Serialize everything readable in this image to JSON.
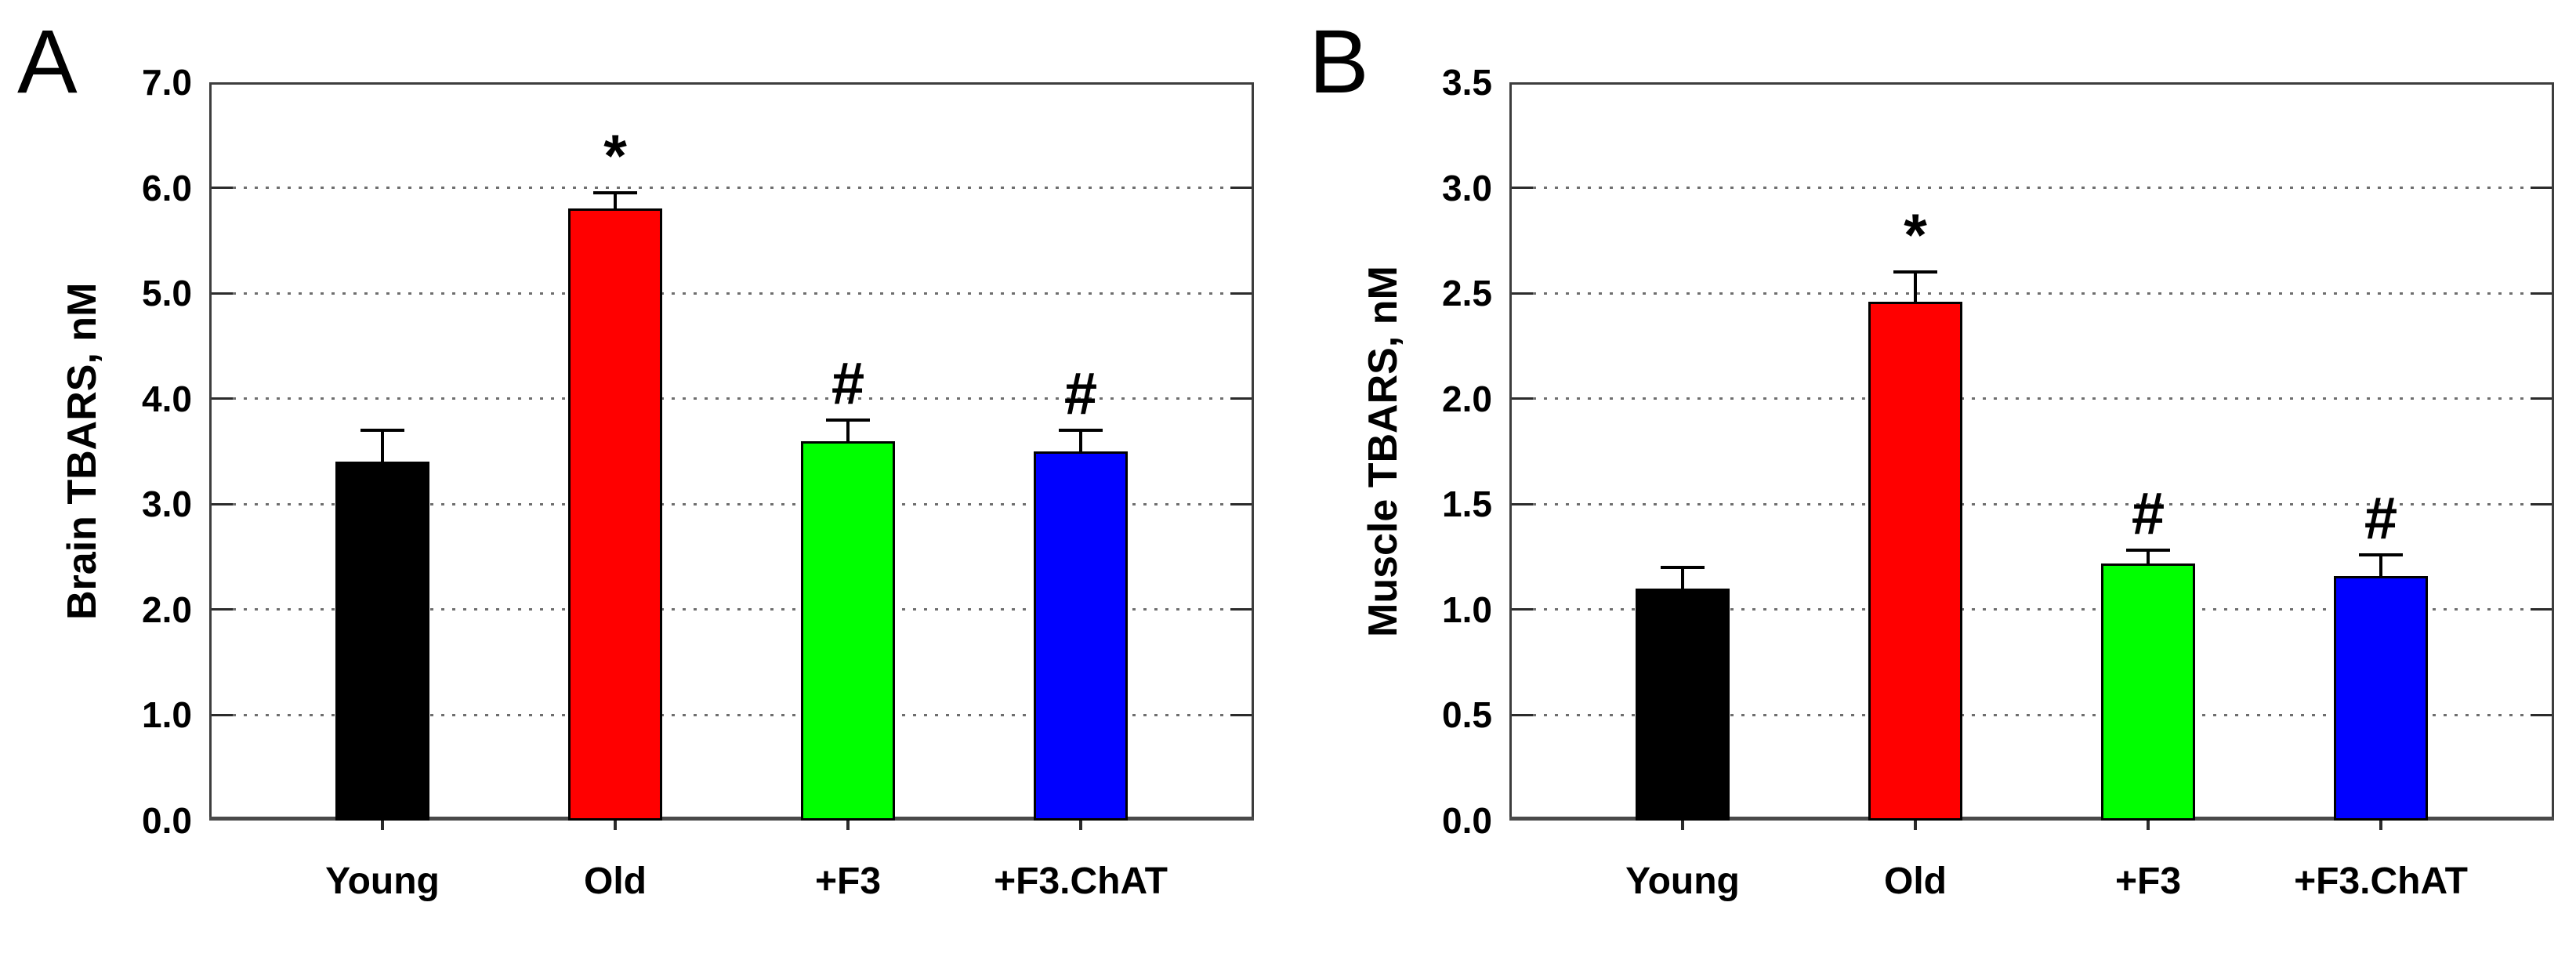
{
  "panels": [
    {
      "letter": "A"
    },
    {
      "letter": "B"
    }
  ],
  "chart_data": [
    {
      "type": "bar",
      "panel": "A",
      "title": "",
      "ylabel": "Brain TBARS, nM",
      "xlabel": "",
      "ylim": [
        0,
        7.0
      ],
      "ytick_step": 1.0,
      "ytick_labels": [
        "0.0",
        "1.0",
        "2.0",
        "3.0",
        "4.0",
        "5.0",
        "6.0",
        "7.0"
      ],
      "grid": "dotted horizontal",
      "legend": "none",
      "categories": [
        "Young",
        "Old",
        "+F3",
        "+F3.ChAT"
      ],
      "values": [
        3.4,
        5.8,
        3.6,
        3.5
      ],
      "errors": [
        0.3,
        0.15,
        0.2,
        0.2
      ],
      "error_direction": "upper",
      "significance": [
        "",
        "*",
        "#",
        "#"
      ],
      "bar_colors": [
        "#000000",
        "#ff0000",
        "#00ff00",
        "#0000ff"
      ]
    },
    {
      "type": "bar",
      "panel": "B",
      "title": "",
      "ylabel": "Muscle TBARS, nM",
      "xlabel": "",
      "ylim": [
        0,
        3.5
      ],
      "ytick_step": 0.5,
      "ytick_labels": [
        "0.0",
        "0.5",
        "1.0",
        "1.5",
        "2.0",
        "2.5",
        "3.0",
        "3.5"
      ],
      "grid": "dotted horizontal",
      "legend": "none",
      "categories": [
        "Young",
        "Old",
        "+F3",
        "+F3.ChAT"
      ],
      "values": [
        1.1,
        2.46,
        1.22,
        1.16
      ],
      "errors": [
        0.1,
        0.14,
        0.06,
        0.1
      ],
      "error_direction": "upper",
      "significance": [
        "",
        "*",
        "#",
        "#"
      ],
      "bar_colors": [
        "#000000",
        "#ff0000",
        "#00ff00",
        "#0000ff"
      ]
    }
  ],
  "style_colors": {
    "frame": "#3d3d3d",
    "axis": "#4a4a4a",
    "grid_dots": "#6e6e6e",
    "text": "#000000",
    "background": "#ffffff"
  }
}
